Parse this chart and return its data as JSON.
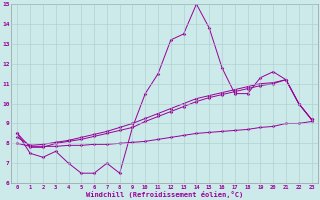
{
  "x_values": [
    0,
    1,
    2,
    3,
    4,
    5,
    6,
    7,
    8,
    9,
    10,
    11,
    12,
    13,
    14,
    15,
    16,
    17,
    18,
    19,
    20,
    21,
    22,
    23
  ],
  "line1": [
    8.5,
    7.5,
    7.3,
    7.6,
    7.0,
    6.5,
    6.5,
    7.0,
    6.5,
    8.8,
    10.5,
    11.5,
    13.2,
    13.5,
    15.0,
    13.8,
    11.8,
    10.5,
    10.5,
    11.3,
    11.6,
    11.2,
    10.0,
    9.2
  ],
  "line2": [
    8.5,
    7.8,
    7.8,
    8.0,
    8.1,
    8.2,
    8.35,
    8.5,
    8.65,
    8.8,
    9.1,
    9.35,
    9.6,
    9.85,
    10.1,
    10.3,
    10.45,
    10.6,
    10.75,
    10.9,
    11.0,
    11.2,
    10.0,
    9.2
  ],
  "line3": [
    8.3,
    7.9,
    7.95,
    8.05,
    8.15,
    8.3,
    8.45,
    8.6,
    8.8,
    9.0,
    9.25,
    9.5,
    9.75,
    10.0,
    10.25,
    10.4,
    10.55,
    10.7,
    10.85,
    11.0,
    11.05,
    11.2,
    10.0,
    9.2
  ],
  "line4": [
    8.0,
    7.85,
    7.85,
    7.85,
    7.9,
    7.9,
    7.95,
    7.95,
    8.0,
    8.05,
    8.1,
    8.2,
    8.3,
    8.4,
    8.5,
    8.55,
    8.6,
    8.65,
    8.7,
    8.8,
    8.85,
    9.0,
    9.0,
    9.1
  ],
  "line_color": "#990099",
  "bg_color": "#cceaea",
  "grid_color": "#aacccc",
  "xlabel": "Windchill (Refroidissement éolien,°C)",
  "ylim": [
    6,
    15
  ],
  "xlim": [
    -0.5,
    23.5
  ],
  "yticks": [
    6,
    7,
    8,
    9,
    10,
    11,
    12,
    13,
    14,
    15
  ],
  "xticks": [
    0,
    1,
    2,
    3,
    4,
    5,
    6,
    7,
    8,
    9,
    10,
    11,
    12,
    13,
    14,
    15,
    16,
    17,
    18,
    19,
    20,
    21,
    22,
    23
  ]
}
